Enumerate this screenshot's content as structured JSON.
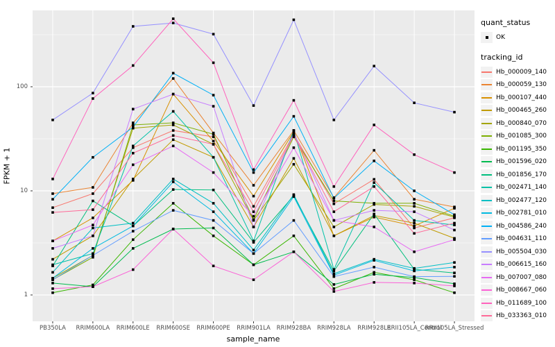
{
  "legend": {
    "quant_status_title": "quant_status",
    "ok_label": "OK",
    "tracking_id_title": "tracking_id"
  },
  "chart_data": {
    "type": "line",
    "title": "",
    "xlabel": "sample_name",
    "ylabel": "FPKM + 1",
    "y_scale": "log10",
    "ylim": [
      1,
      540
    ],
    "yticks": [
      1,
      10,
      100
    ],
    "grid": "major-and-minor-white-on-gray",
    "legend_position": "right",
    "point_symbol": "black-square",
    "quant_status": "OK",
    "categories": [
      "PB350LA",
      "RRIM600LA",
      "RRIM600LE",
      "RRIM600SE",
      "RRIM600PE",
      "RRIM901LA",
      "RRIM928BA",
      "RRIM928LA",
      "RRIM928LE",
      "RRII105LA_Control",
      "RRII105LA_Stressed"
    ],
    "series": [
      {
        "name": "Hb_000009_140",
        "color": "#F8766D",
        "values": [
          6.9,
          9.4,
          26,
          38,
          33,
          7.1,
          35,
          7.5,
          12.9,
          4.4,
          5.5
        ]
      },
      {
        "name": "Hb_000059_130",
        "color": "#EA8331",
        "values": [
          9.4,
          10.8,
          45,
          120,
          36,
          11.3,
          38,
          8.6,
          24.5,
          8.3,
          7.0
        ]
      },
      {
        "name": "Hb_000107_440",
        "color": "#D89000",
        "values": [
          3.3,
          5.5,
          12.6,
          85,
          30,
          8.9,
          37,
          3.7,
          5.6,
          4.6,
          6.8
        ]
      },
      {
        "name": "Hb_000465_260",
        "color": "#C09B00",
        "values": [
          2.2,
          3.7,
          13,
          31,
          21,
          4.5,
          20.5,
          3.7,
          5.8,
          4.9,
          3.5
        ]
      },
      {
        "name": "Hb_000840_070",
        "color": "#A3A500",
        "values": [
          1.45,
          2.4,
          40,
          43,
          28,
          5.2,
          18,
          4.5,
          7.4,
          7.1,
          5.6
        ]
      },
      {
        "name": "Hb_001085_300",
        "color": "#7CAE00",
        "values": [
          1.4,
          2.3,
          43,
          45,
          35,
          5.3,
          33,
          8.0,
          7.6,
          7.6,
          5.7
        ]
      },
      {
        "name": "Hb_001195_350",
        "color": "#39B600",
        "values": [
          1.05,
          1.25,
          3.4,
          7.6,
          3.7,
          1.95,
          3.7,
          1.15,
          1.65,
          1.4,
          1.05
        ]
      },
      {
        "name": "Hb_001596_020",
        "color": "#00BB4E",
        "values": [
          1.3,
          1.2,
          2.8,
          4.3,
          4.4,
          1.95,
          2.6,
          1.26,
          1.58,
          1.47,
          1.28
        ]
      },
      {
        "name": "Hb_001856_170",
        "color": "#00BF7D",
        "values": [
          1.9,
          8.0,
          4.6,
          10.3,
          10.2,
          3.2,
          9.0,
          1.7,
          6.0,
          1.76,
          1.63
        ]
      },
      {
        "name": "Hb_002471_140",
        "color": "#00C1A7",
        "values": [
          1.95,
          2.5,
          27,
          58,
          21,
          3.3,
          38,
          1.76,
          12,
          5.2,
          4.7
        ]
      },
      {
        "name": "Hb_002477_120",
        "color": "#00BFC4",
        "values": [
          1.65,
          4.4,
          4.9,
          13,
          7.6,
          2.7,
          9.2,
          1.6,
          2.2,
          1.8,
          2.05
        ]
      },
      {
        "name": "Hb_002781_010",
        "color": "#00BAE0",
        "values": [
          1.45,
          2.8,
          4.6,
          12.2,
          6.3,
          2.5,
          8.8,
          1.55,
          2.15,
          1.7,
          1.85
        ]
      },
      {
        "name": "Hb_004586_240",
        "color": "#00B0F6",
        "values": [
          8.3,
          21,
          41,
          135,
          83,
          15,
          52,
          8.5,
          19.4,
          10,
          5.9
        ]
      },
      {
        "name": "Hb_004631_110",
        "color": "#619CFF",
        "values": [
          1.4,
          2.4,
          4.1,
          6.5,
          5.2,
          2.5,
          5.2,
          1.5,
          1.85,
          1.5,
          1.51
        ]
      },
      {
        "name": "Hb_005504_030",
        "color": "#9590FF",
        "values": [
          48,
          87,
          380,
          410,
          320,
          66,
          440,
          48,
          158,
          70,
          57
        ]
      },
      {
        "name": "Hb_006615_160",
        "color": "#C77CFF",
        "values": [
          2.8,
          3.7,
          61,
          85,
          65,
          4.5,
          36,
          5.2,
          6.5,
          6.3,
          4.2
        ]
      },
      {
        "name": "Hb_007007_080",
        "color": "#E76BF3",
        "values": [
          3.3,
          4.7,
          17.8,
          27,
          15,
          5.7,
          26,
          5.2,
          4.5,
          2.6,
          3.4
        ]
      },
      {
        "name": "Hb_008667_060",
        "color": "#FB61D7",
        "values": [
          1.15,
          1.2,
          1.75,
          4.3,
          1.9,
          1.4,
          2.6,
          1.08,
          1.32,
          1.3,
          1.22
        ]
      },
      {
        "name": "Hb_011689_100",
        "color": "#FF62BC",
        "values": [
          13,
          77,
          160,
          450,
          170,
          16,
          74,
          11,
          43,
          22.3,
          15
        ]
      },
      {
        "name": "Hb_033363_010",
        "color": "#FF6A98",
        "values": [
          6.2,
          6.6,
          23,
          34,
          28,
          6.3,
          34,
          6.3,
          11,
          3.9,
          4.9
        ]
      }
    ],
    "style": {
      "panel_background": "#EBEBEB",
      "grid_color": "#FFFFFF",
      "tick_text_color": "#4D4D4D",
      "point_color": "#000000",
      "legend_key_background": "#F2F2F2"
    }
  }
}
